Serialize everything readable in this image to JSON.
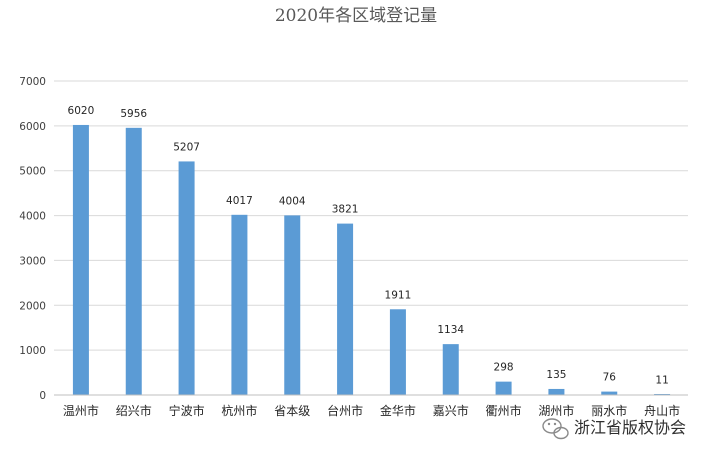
{
  "chart_data": {
    "type": "bar",
    "title": "2020年各区域登记量",
    "xlabel": "",
    "ylabel": "",
    "ylim": [
      0,
      7000
    ],
    "yticks": [
      0,
      1000,
      2000,
      3000,
      4000,
      5000,
      6000,
      7000
    ],
    "grid": true,
    "legend": "none",
    "categories": [
      "温州市",
      "绍兴市",
      "宁波市",
      "杭州市",
      "省本级",
      "台州市",
      "金华市",
      "嘉兴市",
      "衢州市",
      "湖州市",
      "丽水市",
      "舟山市"
    ],
    "values": [
      6020,
      5956,
      5207,
      4017,
      4004,
      3821,
      1911,
      1134,
      298,
      135,
      76,
      11
    ],
    "bar_color": "#5b9bd5"
  },
  "watermark": {
    "text": "浙江省版权协会",
    "icon": "wechat-icon"
  }
}
